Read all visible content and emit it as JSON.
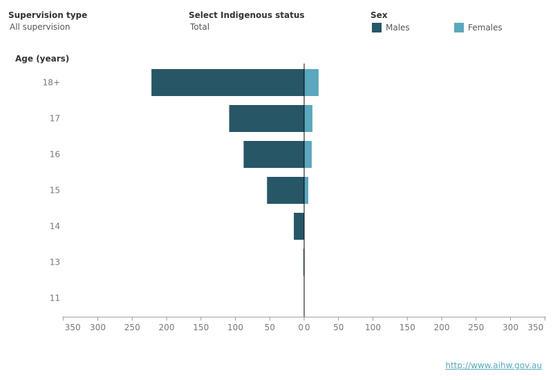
{
  "filters": {
    "supervision_type": {
      "title": "Supervision type",
      "value": "All supervision"
    },
    "indigenous_status": {
      "title": "Select Indigenous status",
      "value": "Total"
    }
  },
  "legend": {
    "title": "Sex",
    "males_label": "Males",
    "females_label": "Females"
  },
  "colors": {
    "males": "#275667",
    "females": "#5ba7bd"
  },
  "source_url": "http://www.aihw.gov.au",
  "chart_data": {
    "type": "bar",
    "orientation": "horizontal-butterfly",
    "ylabel": "Age (years)",
    "categories": [
      "18+",
      "17",
      "16",
      "15",
      "14",
      "13",
      "11"
    ],
    "series": [
      {
        "name": "Males",
        "values": [
          222,
          109,
          88,
          54,
          15,
          1,
          0
        ]
      },
      {
        "name": "Females",
        "values": [
          21,
          12,
          11,
          6,
          0,
          0,
          0
        ]
      }
    ],
    "xlim": [
      0,
      350
    ],
    "x_ticks_left": [
      "350",
      "300",
      "250",
      "200",
      "150",
      "100",
      "50",
      "0"
    ],
    "x_ticks_right": [
      "0",
      "50",
      "100",
      "150",
      "200",
      "250",
      "300",
      "350"
    ]
  }
}
